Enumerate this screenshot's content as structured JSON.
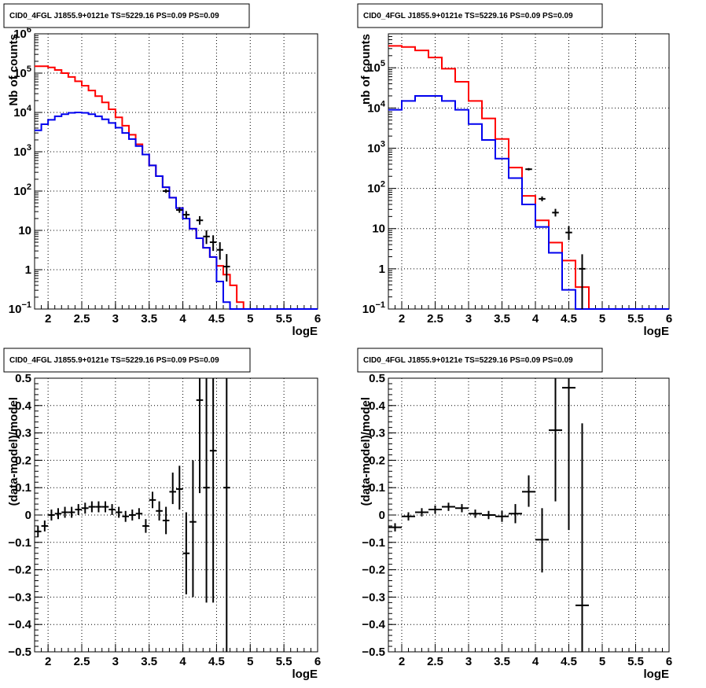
{
  "window": {
    "title": "CID0_4FGL J1855.9+0121e TS=5229.16 PS=0.09 PS=0.09"
  },
  "colors": {
    "data": "#000000",
    "model_red": "#ff0000",
    "model_blue": "#0000ee",
    "grid": "#000000"
  },
  "chart_data": [
    {
      "id": "counts_fine",
      "type": "line",
      "title": "CID0_4FGL J1855.9+0121e TS=5229.16 PS=0.09 PS=0.09",
      "xlabel": "logE",
      "ylabel": "Nb of counts",
      "yscale": "log",
      "xlim": [
        1.8,
        6.0
      ],
      "ylim": [
        0.1,
        1000000
      ],
      "grid": true,
      "xticks": [
        2,
        2.5,
        3,
        3.5,
        4,
        4.5,
        5,
        5.5,
        6
      ],
      "xtick_labels": [
        "2",
        "2.5",
        "3",
        "3.5",
        "4",
        "4.5",
        "5",
        "5.5",
        "6"
      ],
      "yticks": [
        0.1,
        1,
        10,
        100,
        1000,
        10000,
        100000,
        1000000
      ],
      "ytick_labels": [
        {
          "base": "10",
          "exp": "−1"
        },
        {
          "base": "1",
          "exp": ""
        },
        {
          "base": "10",
          "exp": ""
        },
        {
          "base": "10",
          "exp": "2"
        },
        {
          "base": "10",
          "exp": "3"
        },
        {
          "base": "10",
          "exp": "4"
        },
        {
          "base": "10",
          "exp": "5"
        },
        {
          "base": "10",
          "exp": "6"
        }
      ],
      "bin_edges": [
        1.8,
        1.9,
        2.0,
        2.1,
        2.2,
        2.3,
        2.4,
        2.5,
        2.6,
        2.7,
        2.8,
        2.9,
        3.0,
        3.1,
        3.2,
        3.3,
        3.4,
        3.5,
        3.6,
        3.7,
        3.8,
        3.9,
        4.0,
        4.1,
        4.2,
        4.3,
        4.4,
        4.5,
        4.6,
        4.7,
        4.8,
        4.9,
        5.0,
        5.1,
        5.2,
        5.3,
        5.4,
        5.5,
        5.6,
        5.7,
        5.8,
        5.9,
        6.0
      ],
      "series": [
        {
          "color": "#ff0000",
          "style": "step",
          "values": [
            150000,
            150000,
            140000,
            120000,
            100000,
            80000,
            62000,
            48000,
            36000,
            26000,
            18000,
            12000,
            7500,
            4600,
            2700,
            1550,
            850,
            450,
            240,
            125,
            68,
            37,
            20,
            11,
            6.3,
            3.6,
            2.1,
            1.25,
            0.75,
            0.4,
            0.15,
            0.1,
            0.1,
            0.1,
            0.1,
            0.1,
            0.1,
            0.1,
            0.1,
            0.1,
            0.1,
            0.1
          ]
        },
        {
          "color": "#0000ee",
          "style": "step",
          "values": [
            3500,
            5000,
            6500,
            8000,
            9000,
            9800,
            10000,
            9800,
            9000,
            8000,
            6700,
            5400,
            4100,
            3000,
            2100,
            1400,
            850,
            450,
            240,
            125,
            68,
            37,
            20,
            11,
            6.3,
            3.6,
            2.1,
            0.5,
            0.15,
            0.1,
            0.1,
            0.1,
            0.1,
            0.1,
            0.1,
            0.1,
            0.1,
            0.1,
            0.1,
            0.1,
            0.1,
            0.1
          ]
        }
      ],
      "data_points": [
        {
          "x": 3.75,
          "y": 100,
          "ylo": 90,
          "yhi": 112
        },
        {
          "x": 3.95,
          "y": 33,
          "ylo": 28,
          "yhi": 39
        },
        {
          "x": 4.05,
          "y": 25,
          "ylo": 20,
          "yhi": 31
        },
        {
          "x": 4.25,
          "y": 18,
          "ylo": 14,
          "yhi": 23
        },
        {
          "x": 4.35,
          "y": 7,
          "ylo": 4.5,
          "yhi": 10
        },
        {
          "x": 4.45,
          "y": 5,
          "ylo": 3,
          "yhi": 7.5
        },
        {
          "x": 4.55,
          "y": 3.2,
          "ylo": 1.8,
          "yhi": 5
        },
        {
          "x": 4.65,
          "y": 1.2,
          "ylo": 0.5,
          "yhi": 2.5
        }
      ]
    },
    {
      "id": "counts_coarse",
      "type": "line",
      "title": "CID0_4FGL J1855.9+0121e TS=5229.16 PS=0.09 PS=0.09",
      "xlabel": "logE",
      "ylabel": "nb of counts",
      "yscale": "log",
      "xlim": [
        1.8,
        6.0
      ],
      "ylim": [
        0.1,
        700000
      ],
      "grid": true,
      "xticks": [
        2,
        2.5,
        3,
        3.5,
        4,
        4.5,
        5,
        5.5,
        6
      ],
      "xtick_labels": [
        "2",
        "2.5",
        "3",
        "3.5",
        "4",
        "4.5",
        "5",
        "5.5",
        "6"
      ],
      "yticks": [
        0.1,
        1,
        10,
        100,
        1000,
        10000,
        100000
      ],
      "ytick_labels": [
        {
          "base": "10",
          "exp": "−1"
        },
        {
          "base": "1",
          "exp": ""
        },
        {
          "base": "10",
          "exp": ""
        },
        {
          "base": "10",
          "exp": "2"
        },
        {
          "base": "10",
          "exp": "3"
        },
        {
          "base": "10",
          "exp": "4"
        },
        {
          "base": "10",
          "exp": "5"
        }
      ],
      "bin_edges": [
        1.8,
        2.0,
        2.2,
        2.4,
        2.6,
        2.8,
        3.0,
        3.2,
        3.4,
        3.6,
        3.8,
        4.0,
        4.2,
        4.4,
        4.6,
        4.8,
        5.0,
        5.2,
        5.4,
        5.6,
        5.8,
        6.0
      ],
      "series": [
        {
          "color": "#ff0000",
          "style": "step",
          "values": [
            350000,
            330000,
            270000,
            180000,
            95000,
            45000,
            15000,
            5500,
            1700,
            330,
            65,
            16,
            4.5,
            1.6,
            0.35,
            0.1,
            0.1,
            0.1,
            0.1,
            0.1,
            0.1
          ]
        },
        {
          "color": "#0000ee",
          "style": "step",
          "values": [
            9000,
            15000,
            20000,
            20000,
            15000,
            9000,
            4000,
            1600,
            550,
            180,
            40,
            11,
            2.5,
            0.3,
            0.1,
            0.1,
            0.1,
            0.1,
            0.1,
            0.1,
            0.1
          ]
        }
      ],
      "data_points": [
        {
          "x": 3.9,
          "y": 300,
          "ylo": 280,
          "yhi": 320
        },
        {
          "x": 4.1,
          "y": 55,
          "ylo": 48,
          "yhi": 63
        },
        {
          "x": 4.3,
          "y": 25,
          "ylo": 20,
          "yhi": 31
        },
        {
          "x": 4.5,
          "y": 8,
          "ylo": 5.2,
          "yhi": 11.5
        },
        {
          "x": 4.7,
          "y": 1.0,
          "ylo": 0.1,
          "yhi": 2.3
        }
      ]
    },
    {
      "id": "residual_fine",
      "type": "scatter",
      "title": "CID0_4FGL J1855.9+0121e TS=5229.16 PS=0.09 PS=0.09",
      "xlabel": "logE",
      "ylabel": "(data-model)/model",
      "yscale": "linear",
      "xlim": [
        1.8,
        6.0
      ],
      "ylim": [
        -0.5,
        0.5
      ],
      "grid": true,
      "xticks": [
        2,
        2.5,
        3,
        3.5,
        4,
        4.5,
        5,
        5.5,
        6
      ],
      "xtick_labels": [
        "2",
        "2.5",
        "3",
        "3.5",
        "4",
        "4.5",
        "5",
        "5.5",
        "6"
      ],
      "yticks": [
        -0.5,
        -0.4,
        -0.3,
        -0.2,
        -0.1,
        0,
        0.1,
        0.2,
        0.3,
        0.4,
        0.5
      ],
      "ytick_labels": [
        "−0.5",
        "−0.4",
        "−0.3",
        "−0.2",
        "−0.1",
        "0",
        "0.1",
        "0.2",
        "0.3",
        "0.4",
        "0.5"
      ],
      "bin_half_width": 0.05,
      "data_points": [
        {
          "x": 1.85,
          "y": -0.06,
          "ylo": -0.08,
          "yhi": -0.04
        },
        {
          "x": 1.95,
          "y": -0.04,
          "ylo": -0.06,
          "yhi": -0.02
        },
        {
          "x": 2.05,
          "y": 0.0,
          "ylo": -0.02,
          "yhi": 0.02
        },
        {
          "x": 2.15,
          "y": 0.005,
          "ylo": -0.015,
          "yhi": 0.025
        },
        {
          "x": 2.25,
          "y": 0.01,
          "ylo": -0.01,
          "yhi": 0.03
        },
        {
          "x": 2.35,
          "y": 0.01,
          "ylo": -0.01,
          "yhi": 0.03
        },
        {
          "x": 2.45,
          "y": 0.02,
          "ylo": 0.0,
          "yhi": 0.04
        },
        {
          "x": 2.55,
          "y": 0.025,
          "ylo": 0.005,
          "yhi": 0.045
        },
        {
          "x": 2.65,
          "y": 0.03,
          "ylo": 0.01,
          "yhi": 0.05
        },
        {
          "x": 2.75,
          "y": 0.03,
          "ylo": 0.01,
          "yhi": 0.05
        },
        {
          "x": 2.85,
          "y": 0.03,
          "ylo": 0.01,
          "yhi": 0.05
        },
        {
          "x": 2.95,
          "y": 0.02,
          "ylo": 0.0,
          "yhi": 0.04
        },
        {
          "x": 3.05,
          "y": 0.01,
          "ylo": -0.01,
          "yhi": 0.03
        },
        {
          "x": 3.15,
          "y": -0.005,
          "ylo": -0.025,
          "yhi": 0.015
        },
        {
          "x": 3.25,
          "y": 0.0,
          "ylo": -0.02,
          "yhi": 0.02
        },
        {
          "x": 3.35,
          "y": 0.005,
          "ylo": -0.015,
          "yhi": 0.025
        },
        {
          "x": 3.45,
          "y": -0.04,
          "ylo": -0.065,
          "yhi": -0.015
        },
        {
          "x": 3.55,
          "y": 0.055,
          "ylo": 0.025,
          "yhi": 0.085
        },
        {
          "x": 3.65,
          "y": 0.015,
          "ylo": -0.02,
          "yhi": 0.05
        },
        {
          "x": 3.75,
          "y": -0.02,
          "ylo": -0.07,
          "yhi": 0.03
        },
        {
          "x": 3.85,
          "y": 0.085,
          "ylo": 0.04,
          "yhi": 0.155
        },
        {
          "x": 3.95,
          "y": 0.095,
          "ylo": 0.02,
          "yhi": 0.18
        },
        {
          "x": 4.05,
          "y": -0.14,
          "ylo": -0.29,
          "yhi": 0.01
        },
        {
          "x": 4.15,
          "y": -0.025,
          "ylo": -0.3,
          "yhi": 0.2
        },
        {
          "x": 4.25,
          "y": 0.42,
          "ylo": 0.08,
          "yhi": 0.5
        },
        {
          "x": 4.35,
          "y": 0.1,
          "ylo": -0.32,
          "yhi": 0.5
        },
        {
          "x": 4.45,
          "y": 0.235,
          "ylo": -0.32,
          "yhi": 0.5
        },
        {
          "x": 4.65,
          "y": 0.1,
          "ylo": -0.5,
          "yhi": 0.5
        }
      ]
    },
    {
      "id": "residual_coarse",
      "type": "scatter",
      "title": "CID0_4FGL J1855.9+0121e TS=5229.16 PS=0.09 PS=0.09",
      "xlabel": "logE",
      "ylabel": "(data-model)/model",
      "yscale": "linear",
      "xlim": [
        1.8,
        6.0
      ],
      "ylim": [
        -0.5,
        0.5
      ],
      "grid": true,
      "xticks": [
        2,
        2.5,
        3,
        3.5,
        4,
        4.5,
        5,
        5.5,
        6
      ],
      "xtick_labels": [
        "2",
        "2.5",
        "3",
        "3.5",
        "4",
        "4.5",
        "5",
        "5.5",
        "6"
      ],
      "yticks": [
        -0.5,
        -0.4,
        -0.3,
        -0.2,
        -0.1,
        0,
        0.1,
        0.2,
        0.3,
        0.4,
        0.5
      ],
      "ytick_labels": [
        "−0.5",
        "−0.4",
        "−0.3",
        "−0.2",
        "−0.1",
        "0",
        "0.1",
        "0.2",
        "0.3",
        "0.4",
        "0.5"
      ],
      "bin_half_width": 0.1,
      "data_points": [
        {
          "x": 1.9,
          "y": -0.045,
          "ylo": -0.06,
          "yhi": -0.03
        },
        {
          "x": 2.1,
          "y": -0.005,
          "ylo": -0.02,
          "yhi": 0.01
        },
        {
          "x": 2.3,
          "y": 0.01,
          "ylo": -0.005,
          "yhi": 0.025
        },
        {
          "x": 2.5,
          "y": 0.02,
          "ylo": 0.005,
          "yhi": 0.035
        },
        {
          "x": 2.7,
          "y": 0.03,
          "ylo": 0.015,
          "yhi": 0.045
        },
        {
          "x": 2.9,
          "y": 0.025,
          "ylo": 0.01,
          "yhi": 0.04
        },
        {
          "x": 3.1,
          "y": 0.005,
          "ylo": -0.01,
          "yhi": 0.02
        },
        {
          "x": 3.3,
          "y": 0.0,
          "ylo": -0.015,
          "yhi": 0.015
        },
        {
          "x": 3.5,
          "y": -0.005,
          "ylo": -0.025,
          "yhi": 0.015
        },
        {
          "x": 3.7,
          "y": 0.005,
          "ylo": -0.03,
          "yhi": 0.04
        },
        {
          "x": 3.9,
          "y": 0.085,
          "ylo": 0.03,
          "yhi": 0.145
        },
        {
          "x": 4.1,
          "y": -0.09,
          "ylo": -0.21,
          "yhi": 0.025
        },
        {
          "x": 4.3,
          "y": 0.31,
          "ylo": 0.05,
          "yhi": 0.5
        },
        {
          "x": 4.5,
          "y": 0.465,
          "ylo": -0.055,
          "yhi": 0.5
        },
        {
          "x": 4.7,
          "y": -0.33,
          "ylo": -0.5,
          "yhi": 0.335
        }
      ]
    }
  ]
}
